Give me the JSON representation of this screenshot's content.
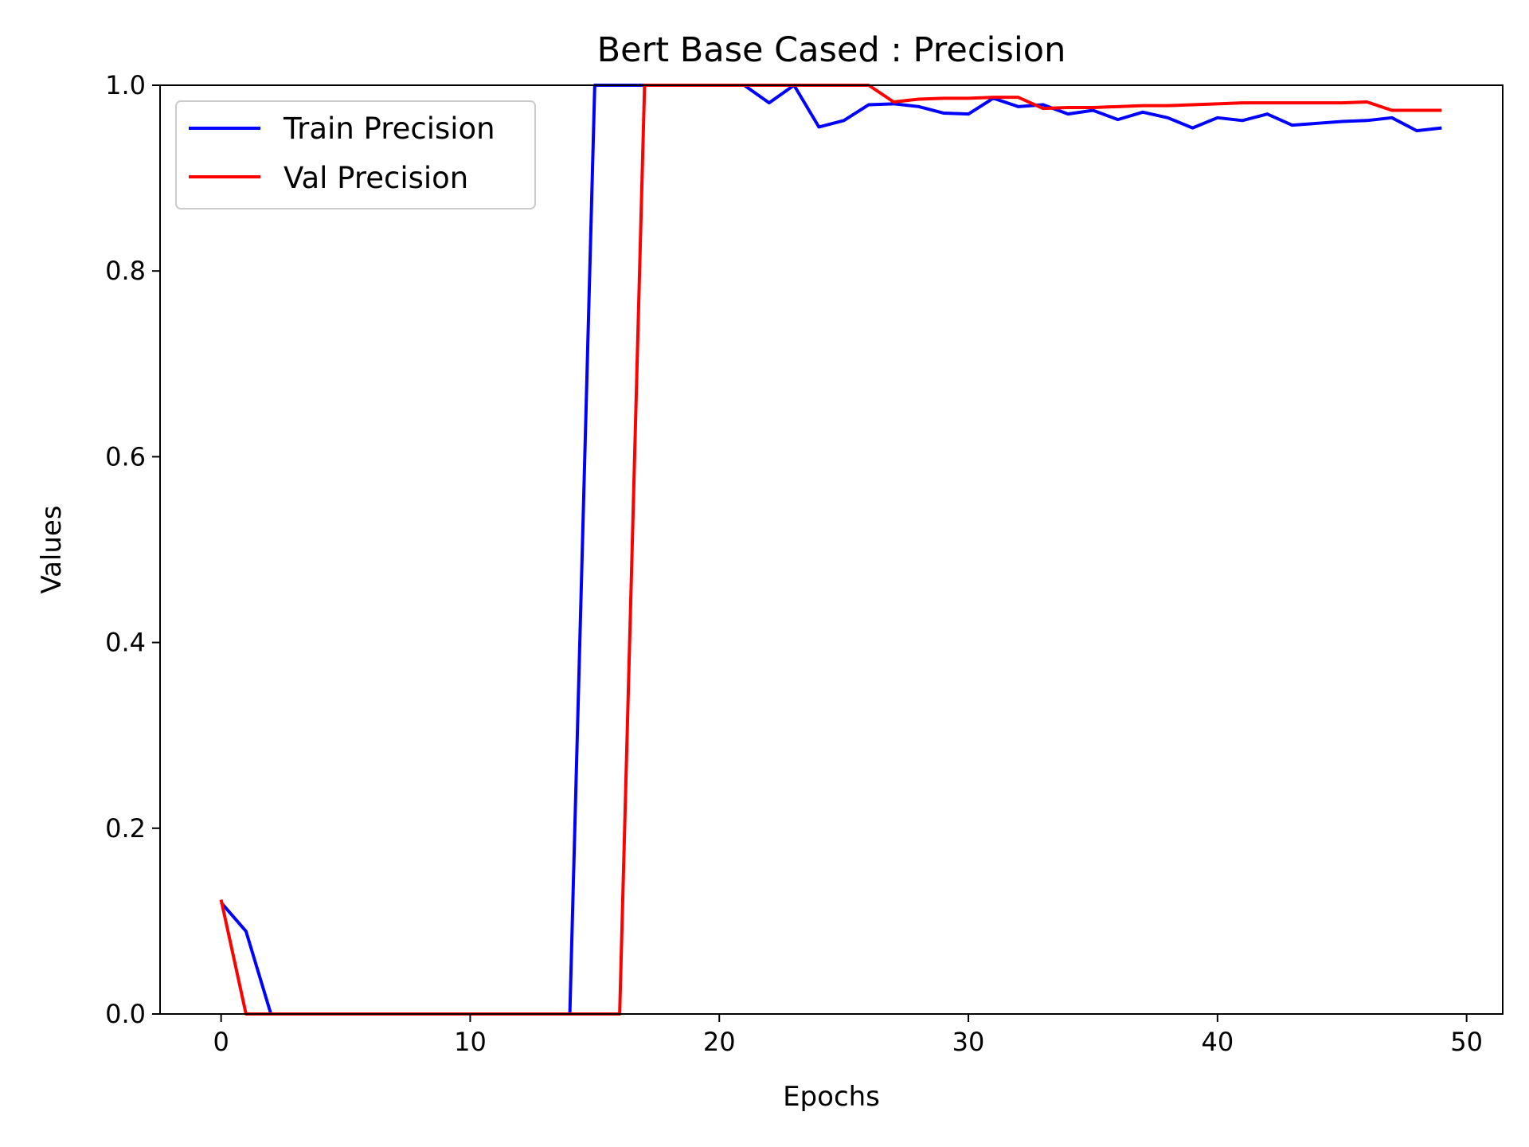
{
  "chart_data": {
    "type": "line",
    "title": "Bert Base Cased : Precision",
    "xlabel": "Epochs",
    "ylabel": "Values",
    "xlim": [
      -2.45,
      51.45
    ],
    "ylim": [
      0.0,
      1.0
    ],
    "xticks": [
      0,
      10,
      20,
      30,
      40,
      50
    ],
    "yticks": [
      0.0,
      0.2,
      0.4,
      0.6,
      0.8,
      1.0
    ],
    "xtick_labels": [
      "0",
      "10",
      "20",
      "30",
      "40",
      "50"
    ],
    "ytick_labels": [
      "0.0",
      "0.2",
      "0.4",
      "0.6",
      "0.8",
      "1.0"
    ],
    "grid": false,
    "legend_position": "top-left",
    "x": [
      0,
      1,
      2,
      3,
      4,
      5,
      6,
      7,
      8,
      9,
      10,
      11,
      12,
      13,
      14,
      15,
      16,
      17,
      18,
      19,
      20,
      21,
      22,
      23,
      24,
      25,
      26,
      27,
      28,
      29,
      30,
      31,
      32,
      33,
      34,
      35,
      36,
      37,
      38,
      39,
      40,
      41,
      42,
      43,
      44,
      45,
      46,
      47,
      48,
      49
    ],
    "series": [
      {
        "name": "Train Precision",
        "color": "#0000ff",
        "values": [
          0.12,
          0.089,
          0,
          0,
          0,
          0,
          0,
          0,
          0,
          0,
          0,
          0,
          0,
          0,
          0,
          1.0,
          1.0,
          1.0,
          1.0,
          1.0,
          1.0,
          1.0,
          0.981,
          1.0,
          0.955,
          0.962,
          0.979,
          0.98,
          0.977,
          0.97,
          0.969,
          0.986,
          0.977,
          0.979,
          0.969,
          0.973,
          0.963,
          0.971,
          0.965,
          0.954,
          0.965,
          0.962,
          0.969,
          0.957,
          0.959,
          0.961,
          0.962,
          0.965,
          0.951,
          0.954
        ]
      },
      {
        "name": "Val Precision",
        "color": "#ff0000",
        "values": [
          0.123,
          0,
          0,
          0,
          0,
          0,
          0,
          0,
          0,
          0,
          0,
          0,
          0,
          0,
          0,
          0,
          0,
          1.0,
          1.0,
          1.0,
          1.0,
          1.0,
          1.0,
          1.0,
          1.0,
          1.0,
          1.0,
          0.982,
          0.985,
          0.986,
          0.986,
          0.987,
          0.987,
          0.975,
          0.976,
          0.976,
          0.977,
          0.978,
          0.978,
          0.979,
          0.98,
          0.981,
          0.981,
          0.981,
          0.981,
          0.981,
          0.982,
          0.973,
          0.973,
          0.973
        ]
      }
    ]
  }
}
